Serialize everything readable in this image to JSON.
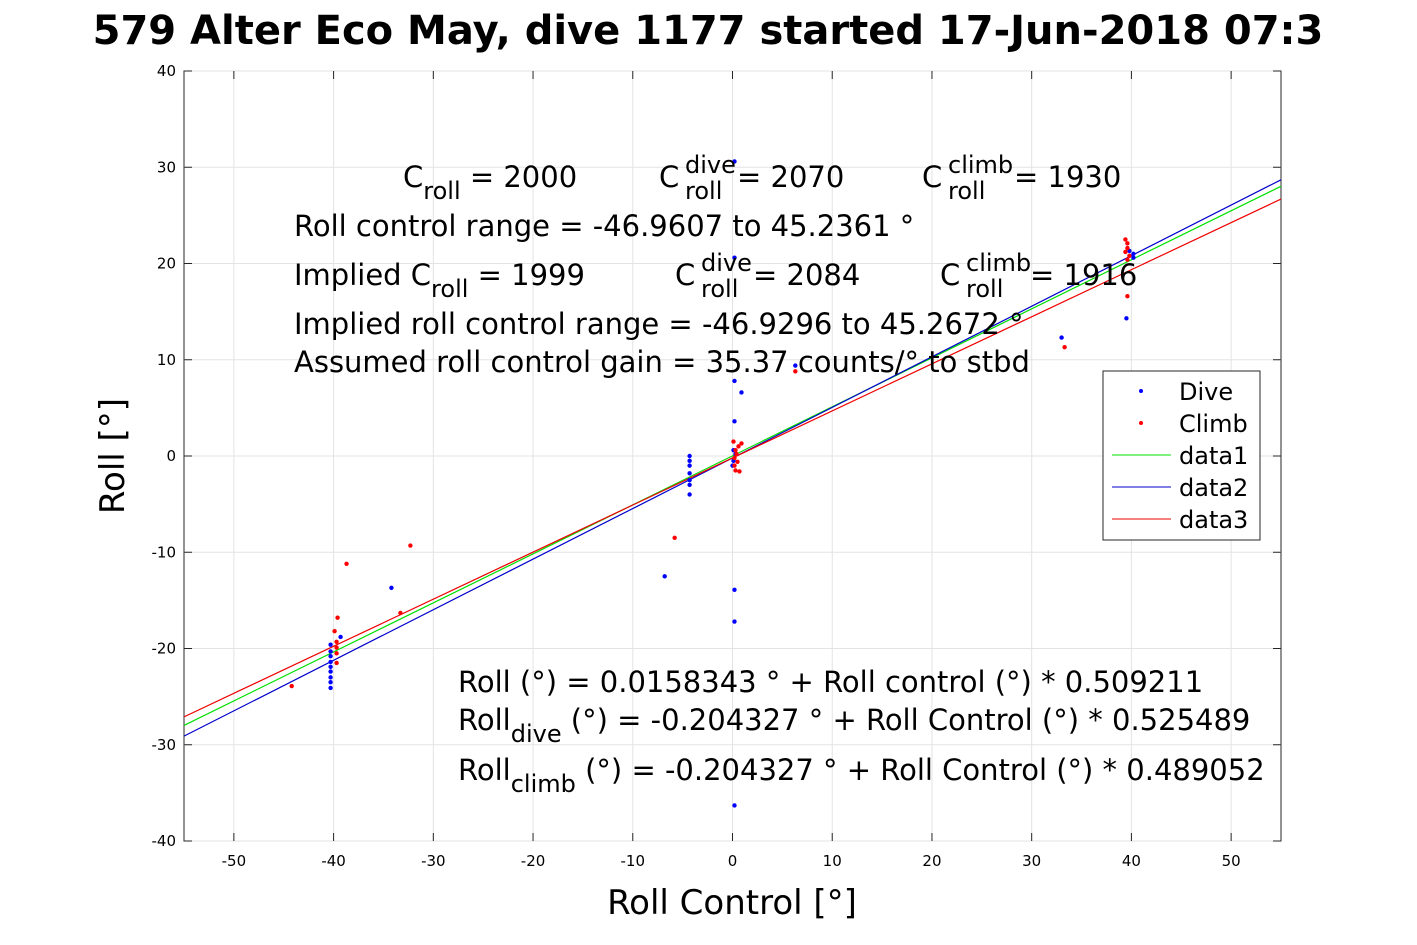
{
  "chart_data": {
    "type": "scatter",
    "title": "579 Alter Eco May, dive 1177 started 17-Jun-2018 07:3",
    "xlabel": "Roll Control [°]",
    "ylabel": "Roll [°]",
    "xlim": [
      -55,
      55
    ],
    "ylim": [
      -40,
      40
    ],
    "xticks": [
      -50,
      -40,
      -30,
      -20,
      -10,
      0,
      10,
      20,
      30,
      40,
      50
    ],
    "yticks": [
      -40,
      -30,
      -20,
      -10,
      0,
      10,
      20,
      30,
      40
    ],
    "grid": true,
    "legend_position": "right",
    "legend": [
      "Dive",
      "Climb",
      "data1",
      "data2",
      "data3"
    ],
    "colors": {
      "dive": "#0000ff",
      "climb": "#ff0000",
      "data1": "#00e000",
      "data2": "#0000cc",
      "data3": "#ee0000"
    },
    "series": [
      {
        "name": "Dive",
        "kind": "points",
        "color": "#0000ff",
        "points": [
          [
            -40.3,
            -24.1
          ],
          [
            -40.3,
            -23.5
          ],
          [
            -40.3,
            -23.0
          ],
          [
            -40.3,
            -22.4
          ],
          [
            -40.3,
            -21.9
          ],
          [
            -40.3,
            -21.4
          ],
          [
            -40.3,
            -20.8
          ],
          [
            -40.3,
            -20.3
          ],
          [
            -40.3,
            -19.6
          ],
          [
            -39.3,
            -18.8
          ],
          [
            -34.2,
            -13.7
          ],
          [
            -4.3,
            -4.0
          ],
          [
            -4.3,
            -3.0
          ],
          [
            -4.3,
            -2.5
          ],
          [
            -4.3,
            -1.8
          ],
          [
            -4.3,
            -1.0
          ],
          [
            -4.3,
            -0.5
          ],
          [
            -4.3,
            0.0
          ],
          [
            -6.8,
            -12.5
          ],
          [
            0.2,
            -36.3
          ],
          [
            0.2,
            -17.2
          ],
          [
            0.2,
            -13.9
          ],
          [
            0.0,
            -1.0
          ],
          [
            0.1,
            -0.5
          ],
          [
            0.3,
            0.2
          ],
          [
            0.1,
            0.6
          ],
          [
            0.2,
            3.6
          ],
          [
            0.2,
            7.8
          ],
          [
            0.9,
            6.6
          ],
          [
            0.2,
            20.6
          ],
          [
            0.2,
            30.6
          ],
          [
            6.3,
            9.4
          ],
          [
            33.0,
            12.3
          ],
          [
            39.5,
            14.3
          ],
          [
            40.2,
            20.6
          ],
          [
            40.2,
            21.0
          ],
          [
            39.8,
            21.3
          ]
        ]
      },
      {
        "name": "Climb",
        "kind": "points",
        "color": "#ff0000",
        "points": [
          [
            -44.2,
            -23.9
          ],
          [
            -39.7,
            -21.5
          ],
          [
            -39.7,
            -20.5
          ],
          [
            -39.7,
            -19.9
          ],
          [
            -39.7,
            -19.3
          ],
          [
            -39.9,
            -18.2
          ],
          [
            -39.6,
            -16.8
          ],
          [
            -38.7,
            -11.2
          ],
          [
            -33.3,
            -16.3
          ],
          [
            -32.3,
            -9.3
          ],
          [
            -5.8,
            -8.5
          ],
          [
            0.3,
            -1.5
          ],
          [
            0.2,
            -1.0
          ],
          [
            0.5,
            -0.6
          ],
          [
            0.2,
            -0.2
          ],
          [
            0.4,
            0.2
          ],
          [
            0.3,
            0.6
          ],
          [
            0.6,
            1.0
          ],
          [
            0.9,
            1.3
          ],
          [
            0.1,
            1.5
          ],
          [
            0.7,
            -1.6
          ],
          [
            6.3,
            8.8
          ],
          [
            33.3,
            11.3
          ],
          [
            39.6,
            16.6
          ],
          [
            39.6,
            20.4
          ],
          [
            39.8,
            20.8
          ],
          [
            39.4,
            21.2
          ],
          [
            39.6,
            21.6
          ],
          [
            39.6,
            22.1
          ],
          [
            39.4,
            22.5
          ]
        ]
      },
      {
        "name": "data1",
        "kind": "line",
        "color": "#00e000",
        "intercept": 0.0158343,
        "slope": 0.509211
      },
      {
        "name": "data2",
        "kind": "line",
        "color": "#0000cc",
        "intercept": -0.204327,
        "slope": 0.525489
      },
      {
        "name": "data3",
        "kind": "line",
        "color": "#ee0000",
        "intercept": -0.204327,
        "slope": 0.489052
      }
    ]
  },
  "annotations": {
    "row1": {
      "c": "C",
      "sub": "roll",
      "eq": " = 2000",
      "c2": "C",
      "sub2": "roll",
      "sup2": "dive",
      "eq2": " = 2070",
      "c3": "C",
      "sub3": "roll",
      "sup3": "climb",
      "eq3": " = 1930"
    },
    "range": "Roll control range = -46.9607 to 45.2361 °",
    "row2": {
      "pre": "Implied C",
      "sub": "roll",
      "eq": " = 1999",
      "c2": "C",
      "sub2": "roll",
      "sup2": "dive",
      "eq2": " = 2084",
      "c3": "C",
      "sub3": "roll",
      "sup3": "climb",
      "eq3": " = 1916"
    },
    "implied_range": "Implied roll control range = -46.9296 to 45.2672 °",
    "gain": "Assumed roll control gain = 35.37 counts/° to stbd",
    "fit1": "Roll (°) = 0.0158343 ° + Roll control (°) * 0.509211",
    "fit2": {
      "pre": "Roll",
      "sub": "dive",
      "post": " (°) = -0.204327 ° + Roll Control (°) * 0.525489"
    },
    "fit3": {
      "pre": "Roll",
      "sub": "climb",
      "post": " (°) = -0.204327 ° + Roll Control (°) * 0.489052"
    }
  }
}
